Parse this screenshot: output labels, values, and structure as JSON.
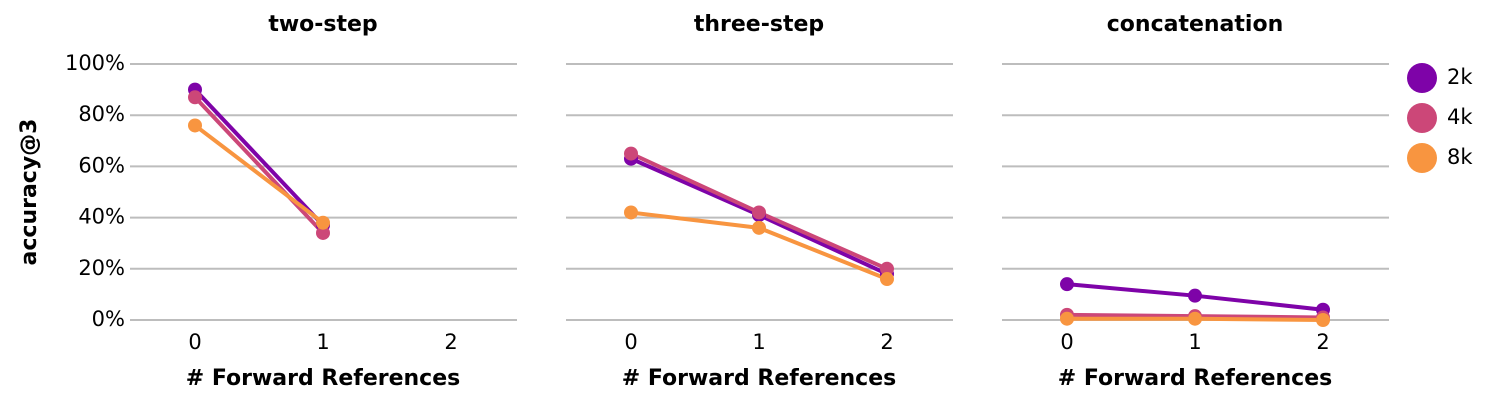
{
  "chart_data": [
    {
      "type": "line",
      "title": "two-step",
      "x_label": "# Forward References",
      "y_label": "accuracy@3",
      "x": [
        0,
        1
      ],
      "xlim": [
        -0.5,
        2.5
      ],
      "xticks": [
        0,
        1,
        2
      ],
      "ylim": [
        0,
        100
      ],
      "yticks": [
        {
          "value": 0,
          "label": "0%"
        },
        {
          "value": 20,
          "label": "20%"
        },
        {
          "value": 40,
          "label": "40%"
        },
        {
          "value": 60,
          "label": "60%"
        },
        {
          "value": 80,
          "label": "80%"
        },
        {
          "value": 100,
          "label": "100%"
        }
      ],
      "grid": true,
      "series": [
        {
          "name": "2k",
          "color": "#7e03a8",
          "values": [
            90,
            37
          ]
        },
        {
          "name": "4k",
          "color": "#cc4778",
          "values": [
            87,
            34
          ]
        },
        {
          "name": "8k",
          "color": "#f89540",
          "values": [
            76,
            38
          ]
        }
      ]
    },
    {
      "type": "line",
      "title": "three-step",
      "x_label": "# Forward References",
      "x": [
        0,
        1,
        2
      ],
      "xlim": [
        -0.5,
        2.5
      ],
      "xticks": [
        0,
        1,
        2
      ],
      "ylim": [
        0,
        100
      ],
      "yticks": [
        0,
        20,
        40,
        60,
        80,
        100
      ],
      "grid": true,
      "series": [
        {
          "name": "2k",
          "color": "#7e03a8",
          "values": [
            63,
            41,
            18
          ]
        },
        {
          "name": "4k",
          "color": "#cc4778",
          "values": [
            65,
            42,
            20
          ]
        },
        {
          "name": "8k",
          "color": "#f89540",
          "values": [
            42,
            36,
            16
          ]
        }
      ]
    },
    {
      "type": "line",
      "title": "concatenation",
      "x_label": "# Forward References",
      "x": [
        0,
        1,
        2
      ],
      "xlim": [
        -0.5,
        2.5
      ],
      "xticks": [
        0,
        1,
        2
      ],
      "ylim": [
        0,
        100
      ],
      "yticks": [
        0,
        20,
        40,
        60,
        80,
        100
      ],
      "grid": true,
      "legend": "right",
      "series": [
        {
          "name": "2k",
          "color": "#7e03a8",
          "values": [
            14,
            9.5,
            4
          ]
        },
        {
          "name": "4k",
          "color": "#cc4778",
          "values": [
            2,
            1.5,
            1
          ]
        },
        {
          "name": "8k",
          "color": "#f89540",
          "values": [
            0.5,
            0.5,
            0
          ]
        }
      ]
    }
  ]
}
